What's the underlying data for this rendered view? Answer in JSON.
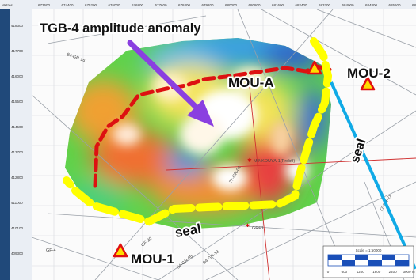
{
  "annotations": {
    "title": "TGB-4 amplitude anomaly",
    "seal_right": "seal",
    "seal_bottom": "seal"
  },
  "wells": [
    {
      "label": "MOU-A"
    },
    {
      "label": "MOU-2"
    },
    {
      "label": "MOU-1"
    }
  ],
  "well_ticker": "MINKOUYA-1(Prob9)",
  "grid_labels": {
    "corner": "Metres",
    "x_ticks": [
      "673600",
      "674400",
      "675200",
      "676000",
      "676800",
      "677600",
      "678400",
      "679200",
      "680000",
      "680800",
      "681600",
      "682400",
      "683200",
      "684000",
      "684800",
      "685600",
      "686400"
    ],
    "y_ticks": [
      "418300",
      "417700",
      "416000",
      "415500",
      "414500",
      "413700",
      "412800",
      "411000",
      "410100",
      "409300"
    ]
  },
  "seismic_lines": [
    "84-GR-16",
    "GF-20",
    "GF-4",
    "77-GR-01",
    "84-GR-05",
    "84-GR-18",
    "GRF1",
    "77-GR-21"
  ],
  "scale_bar": {
    "label": "Scale = 1:50000",
    "ticks": [
      "0",
      "600",
      "1200",
      "1800",
      "2400",
      "3000 m"
    ]
  },
  "colors": {
    "frame": "#20497a",
    "seal": "#ffff00",
    "anomaly_outline": "#dd1111",
    "arrow": "#8a3fe0",
    "pointer": "#10aae6",
    "well_marker": "#e01010"
  }
}
